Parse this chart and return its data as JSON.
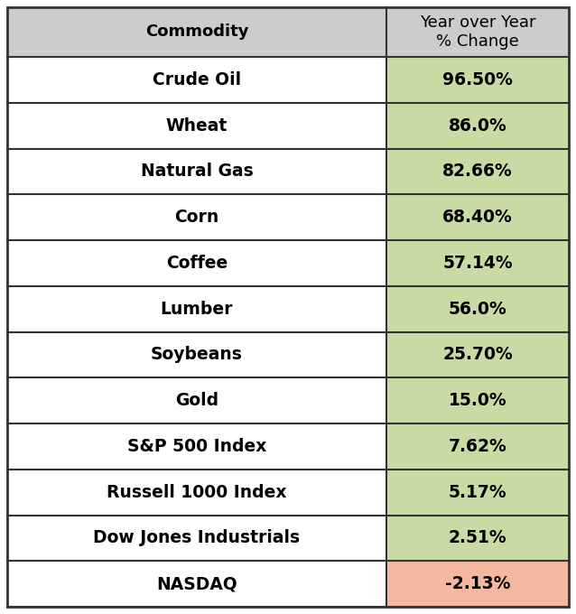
{
  "commodities": [
    "Crude Oil",
    "Wheat",
    "Natural Gas",
    "Corn",
    "Coffee",
    "Lumber",
    "Soybeans",
    "Gold",
    "S&P 500 Index",
    "Russell 1000 Index",
    "Dow Jones Industrials",
    "NASDAQ"
  ],
  "values": [
    "96.50%",
    "86.0%",
    "82.66%",
    "68.40%",
    "57.14%",
    "56.0%",
    "25.70%",
    "15.0%",
    "7.62%",
    "5.17%",
    "2.51%",
    "-2.13%"
  ],
  "value_bg_colors": [
    "#c8dba5",
    "#c8dba5",
    "#c8dba5",
    "#c8dba5",
    "#c8dba5",
    "#c8dba5",
    "#c8dba5",
    "#c8dba5",
    "#c8dba5",
    "#c8dba5",
    "#c8dba5",
    "#f4b8a0"
  ],
  "header_commodity": "Commodity",
  "header_value": "Year over Year\n% Change",
  "header_bg": "#cccccc",
  "row_bg": "#ffffff",
  "border_color": "#333333",
  "text_color": "#000000",
  "font_size": 13.5,
  "header_font_size": 13.0,
  "fig_width": 6.38,
  "fig_height": 6.8,
  "dpi": 100
}
